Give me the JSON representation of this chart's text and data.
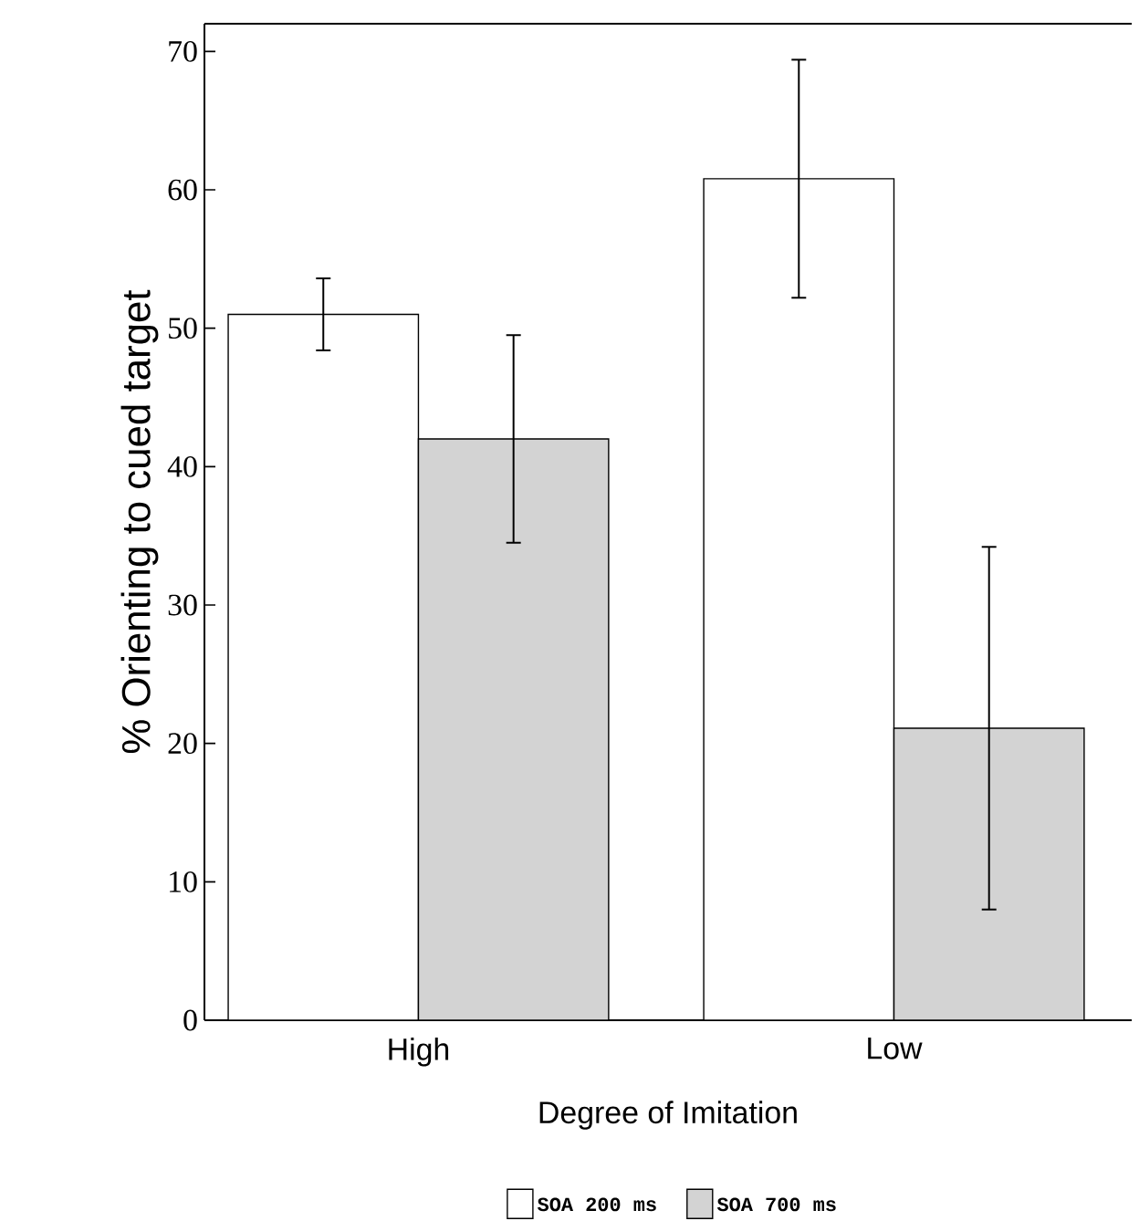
{
  "chart_data": {
    "type": "bar",
    "xlabel": "Degree of Imitation",
    "ylabel": "% Orienting to cued target",
    "categories": [
      "High",
      "Low"
    ],
    "series": [
      {
        "name": "SOA 200 ms",
        "color": "#ffffff",
        "values": [
          51,
          60.8
        ],
        "errors": [
          2.6,
          8.6
        ]
      },
      {
        "name": "SOA 700 ms",
        "color": "#d3d3d3",
        "values": [
          42,
          21.1
        ],
        "errors": [
          7.5,
          13.1
        ]
      }
    ],
    "ylim": [
      0,
      72
    ],
    "yticks": [
      0,
      10,
      20,
      30,
      40,
      50,
      60,
      70
    ],
    "grid": false,
    "legend": "bottom"
  }
}
